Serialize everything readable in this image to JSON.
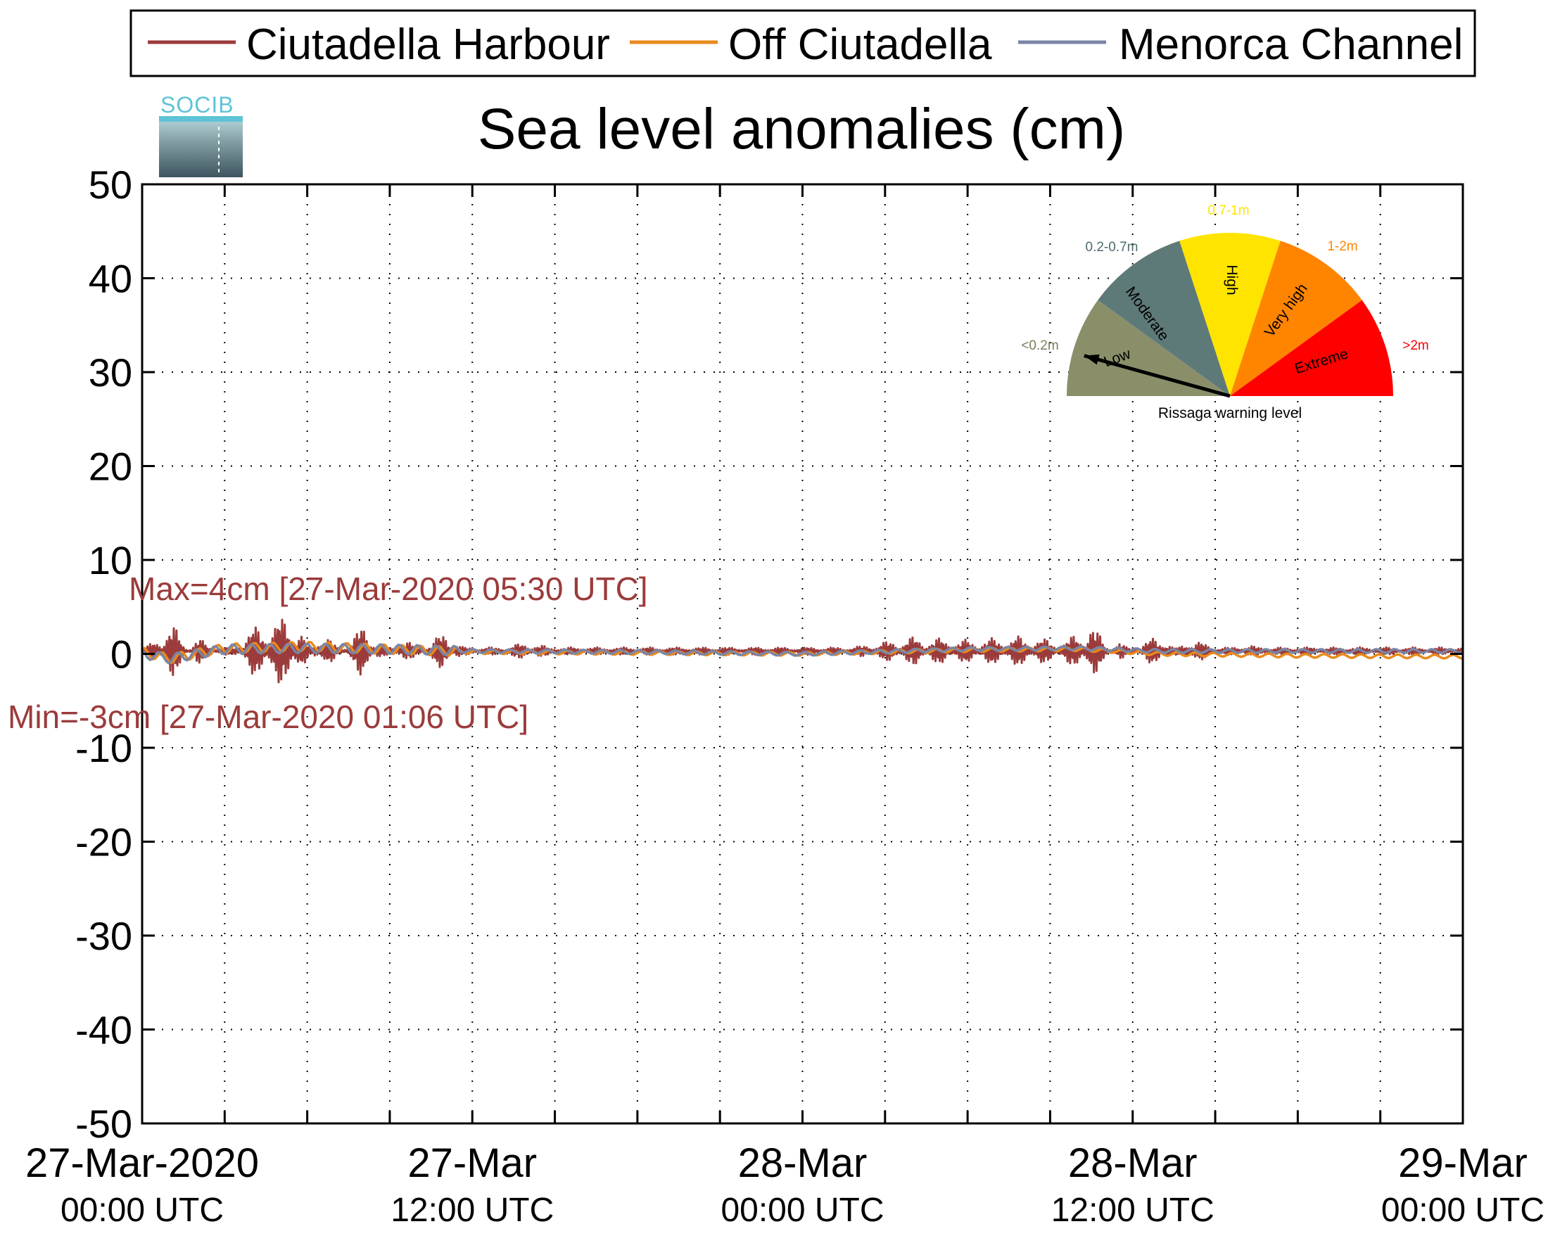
{
  "chart_data": {
    "type": "line",
    "title": "Sea level anomalies (cm)",
    "xlabel": "",
    "ylabel": "",
    "ylim": [
      -50,
      50
    ],
    "yticks": [
      50,
      40,
      30,
      20,
      10,
      0,
      -10,
      -20,
      -30,
      -40,
      -50
    ],
    "xlim": [
      "2020-03-27 00:00",
      "2020-03-29 00:00"
    ],
    "grid": true,
    "legend_position": "top",
    "x_tick_labels": [
      {
        "date": "27-Mar-2020",
        "time": "00:00 UTC",
        "at": "2020-03-27 00:00"
      },
      {
        "date": "27-Mar",
        "time": "12:00 UTC",
        "at": "2020-03-27 12:00"
      },
      {
        "date": "28-Mar",
        "time": "00:00 UTC",
        "at": "2020-03-28 00:00"
      },
      {
        "date": "28-Mar",
        "time": "12:00 UTC",
        "at": "2020-03-28 12:00"
      },
      {
        "date": "29-Mar",
        "time": "00:00 UTC",
        "at": "2020-03-29 00:00"
      }
    ],
    "minor_gridlines_every_hours": 3,
    "series": [
      {
        "name": "Ciutadella Harbour",
        "color": "#9b3b3b",
        "points": [
          {
            "x": "2020-03-27 00:00",
            "y": 0.0
          },
          {
            "x": "2020-03-27 01:06",
            "y": -3.0
          },
          {
            "x": "2020-03-27 02:00",
            "y": 1.5
          },
          {
            "x": "2020-03-27 03:00",
            "y": -0.5
          },
          {
            "x": "2020-03-27 04:00",
            "y": 2.5
          },
          {
            "x": "2020-03-27 05:30",
            "y": 4.0
          },
          {
            "x": "2020-03-27 06:30",
            "y": -2.5
          },
          {
            "x": "2020-03-27 08:00",
            "y": 2.8
          },
          {
            "x": "2020-03-27 09:30",
            "y": -1.5
          },
          {
            "x": "2020-03-27 11:00",
            "y": 2.2
          },
          {
            "x": "2020-03-27 12:00",
            "y": -0.5
          },
          {
            "x": "2020-03-27 14:00",
            "y": 1.0
          },
          {
            "x": "2020-03-27 16:00",
            "y": -0.5
          },
          {
            "x": "2020-03-27 19:00",
            "y": 0.3
          },
          {
            "x": "2020-03-27 22:00",
            "y": 0.0
          },
          {
            "x": "2020-03-28 00:00",
            "y": -0.3
          },
          {
            "x": "2020-03-28 02:00",
            "y": 0.5
          },
          {
            "x": "2020-03-28 04:00",
            "y": 1.5
          },
          {
            "x": "2020-03-28 06:00",
            "y": 1.2
          },
          {
            "x": "2020-03-28 08:00",
            "y": 1.6
          },
          {
            "x": "2020-03-28 09:30",
            "y": 1.0
          },
          {
            "x": "2020-03-28 10:30",
            "y": 3.0
          },
          {
            "x": "2020-03-28 11:30",
            "y": -1.0
          },
          {
            "x": "2020-03-28 13:00",
            "y": 2.0
          },
          {
            "x": "2020-03-28 14:00",
            "y": -1.5
          },
          {
            "x": "2020-03-28 16:00",
            "y": 0.8
          },
          {
            "x": "2020-03-28 18:00",
            "y": -0.5
          },
          {
            "x": "2020-03-28 20:00",
            "y": 0.5
          },
          {
            "x": "2020-03-28 22:00",
            "y": -0.4
          },
          {
            "x": "2020-03-29 00:00",
            "y": -0.3
          }
        ]
      },
      {
        "name": "Off Ciutadella",
        "color": "#e98a1c",
        "points": [
          {
            "x": "2020-03-27 00:00",
            "y": 0.2
          },
          {
            "x": "2020-03-27 01:00",
            "y": -0.5
          },
          {
            "x": "2020-03-27 03:00",
            "y": 0.6
          },
          {
            "x": "2020-03-27 06:00",
            "y": 0.8
          },
          {
            "x": "2020-03-27 09:00",
            "y": 0.5
          },
          {
            "x": "2020-03-27 12:00",
            "y": 0.2
          },
          {
            "x": "2020-03-27 18:00",
            "y": 0.1
          },
          {
            "x": "2020-03-28 00:00",
            "y": 0.0
          },
          {
            "x": "2020-03-28 06:00",
            "y": 0.4
          },
          {
            "x": "2020-03-28 10:00",
            "y": 0.5
          },
          {
            "x": "2020-03-28 13:00",
            "y": 0.0
          },
          {
            "x": "2020-03-28 18:00",
            "y": -0.2
          },
          {
            "x": "2020-03-29 00:00",
            "y": -0.3
          }
        ]
      },
      {
        "name": "Menorca Channel",
        "color": "#7a86a6",
        "points": [
          {
            "x": "2020-03-27 00:00",
            "y": 0.0
          },
          {
            "x": "2020-03-27 01:00",
            "y": -0.5
          },
          {
            "x": "2020-03-27 03:00",
            "y": 0.5
          },
          {
            "x": "2020-03-27 06:00",
            "y": 0.6
          },
          {
            "x": "2020-03-27 09:00",
            "y": 0.5
          },
          {
            "x": "2020-03-27 12:00",
            "y": 0.3
          },
          {
            "x": "2020-03-27 18:00",
            "y": 0.2
          },
          {
            "x": "2020-03-28 00:00",
            "y": 0.0
          },
          {
            "x": "2020-03-28 06:00",
            "y": 0.5
          },
          {
            "x": "2020-03-28 10:00",
            "y": 0.6
          },
          {
            "x": "2020-03-28 13:00",
            "y": 0.3
          },
          {
            "x": "2020-03-28 18:00",
            "y": 0.3
          },
          {
            "x": "2020-03-29 00:00",
            "y": 0.3
          }
        ]
      }
    ],
    "annotations": [
      {
        "name": "max",
        "text": "Max=4cm [27-Mar-2020 05:30 UTC]",
        "color": "#9b3b3b"
      },
      {
        "name": "min",
        "text": "Min=-3cm [27-Mar-2020 01:06 UTC]",
        "color": "#9b3b3b"
      }
    ]
  },
  "gauge": {
    "caption": "Rissaga warning level",
    "pointer_level": "Low",
    "sectors": [
      {
        "level": "Low",
        "range": "<0.2m",
        "fill": "#8a8f6a",
        "range_color": "#7b7d5a"
      },
      {
        "level": "Moderate",
        "range": "0.2-0.7m",
        "fill": "#5e7a78",
        "range_color": "#4e6a6f"
      },
      {
        "level": "High",
        "range": "0.7-1m",
        "fill": "#ffe400",
        "range_color": "#ffe400"
      },
      {
        "level": "Very high",
        "range": "1-2m",
        "fill": "#ff8400",
        "range_color": "#ff8400"
      },
      {
        "level": "Extreme",
        "range": ">2m",
        "fill": "#ff0000",
        "range_color": "#ff0000"
      }
    ]
  },
  "logo": {
    "text": "SOCIB"
  }
}
